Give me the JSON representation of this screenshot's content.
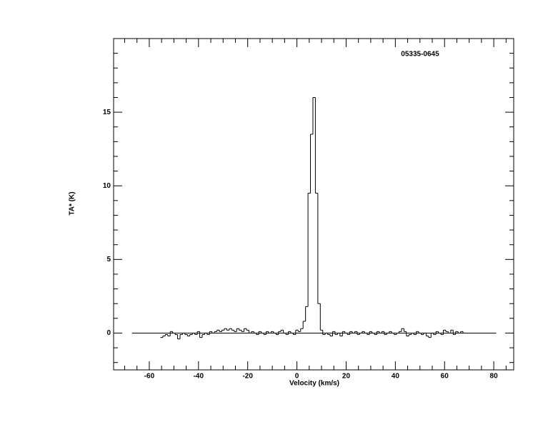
{
  "chart_data": {
    "type": "step",
    "label": "05335-0645",
    "xlabel": "Velocity (km/s)",
    "ylabel": "TA* (K)",
    "xlim": [
      -74.5,
      88.1
    ],
    "ylim": [
      -2.5,
      20
    ],
    "xticks": [
      -60,
      -40,
      -20,
      0,
      20,
      40,
      60,
      80
    ],
    "yticks": [
      0,
      5,
      10,
      15
    ],
    "x_minor_ticks": [
      -70,
      -65,
      -55,
      -50,
      -45,
      -35,
      -30,
      -25,
      -15,
      -10,
      -5,
      5,
      10,
      15,
      25,
      30,
      35,
      45,
      50,
      55,
      65,
      70,
      75,
      85
    ],
    "y_minor_ticks": [
      -2,
      -1,
      1,
      2,
      3,
      4,
      6,
      7,
      8,
      9,
      11,
      12,
      13,
      14,
      16,
      17,
      18,
      19,
      20
    ],
    "baseline": [
      -67,
      81
    ],
    "color": "#000000",
    "x": [
      -55,
      -54,
      -53,
      -52,
      -51,
      -50,
      -49,
      -48,
      -47,
      -46,
      -45,
      -44,
      -43,
      -42,
      -41,
      -40,
      -39,
      -38,
      -37,
      -36,
      -35,
      -34,
      -33,
      -32,
      -31,
      -30,
      -29,
      -28,
      -27,
      -26,
      -25,
      -24,
      -23,
      -22,
      -21,
      -20,
      -19,
      -18,
      -17,
      -16,
      -15,
      -14,
      -13,
      -12,
      -11,
      -10,
      -9,
      -8,
      -7,
      -6,
      -5,
      -4,
      -3,
      -2,
      -1,
      0,
      1,
      2,
      3,
      4,
      5,
      6,
      7,
      8,
      9,
      10,
      11,
      12,
      13,
      14,
      15,
      16,
      17,
      18,
      19,
      20,
      21,
      22,
      23,
      24,
      25,
      26,
      27,
      28,
      29,
      30,
      31,
      32,
      33,
      34,
      35,
      36,
      37,
      38,
      39,
      40,
      41,
      42,
      43,
      44,
      45,
      46,
      47,
      48,
      49,
      50,
      51,
      52,
      53,
      54,
      55,
      56,
      57,
      58,
      59,
      60,
      61,
      62,
      63,
      64,
      65,
      66,
      67,
      68
    ],
    "values": [
      -0.3,
      -0.2,
      -0.1,
      -0.2,
      0.1,
      0,
      -0.1,
      -0.4,
      -0.1,
      0,
      -0.1,
      -0.2,
      -0.1,
      0,
      -0.1,
      0.1,
      -0.3,
      -0.1,
      0,
      -0.1,
      0.1,
      0,
      0.1,
      0.2,
      0.1,
      0.2,
      0.3,
      0.2,
      0.3,
      0.2,
      0.1,
      0.3,
      0.2,
      0.1,
      0.3,
      0.2,
      0,
      0.1,
      0,
      -0.1,
      0.1,
      0,
      -0.1,
      0.1,
      0,
      0.1,
      0,
      -0.1,
      0.1,
      0.2,
      0,
      -0.1,
      0.1,
      0,
      -0.1,
      0.2,
      0.1,
      0.3,
      0.8,
      1.8,
      9.5,
      13.5,
      16,
      9.5,
      2,
      0.2,
      -0.1,
      0,
      -0.1,
      -0.2,
      0.1,
      -0.1,
      0,
      -0.2,
      0.1,
      0,
      -0.1,
      0.1,
      0,
      0.1,
      -0.1,
      0,
      0.1,
      0,
      -0.1,
      0.1,
      0,
      -0.1,
      0.1,
      0,
      0.1,
      -0.1,
      0,
      0.1,
      0,
      -0.1,
      0,
      0.1,
      0.3,
      0.1,
      -0.2,
      -0.1,
      0,
      -0.1,
      0.1,
      0,
      -0.1,
      0,
      -0.2,
      -0.3,
      0,
      -0.1,
      0.1,
      0,
      -0.1,
      0.2,
      0.1,
      0,
      0.2,
      -0.1,
      0.1,
      0,
      0.1,
      0
    ]
  }
}
